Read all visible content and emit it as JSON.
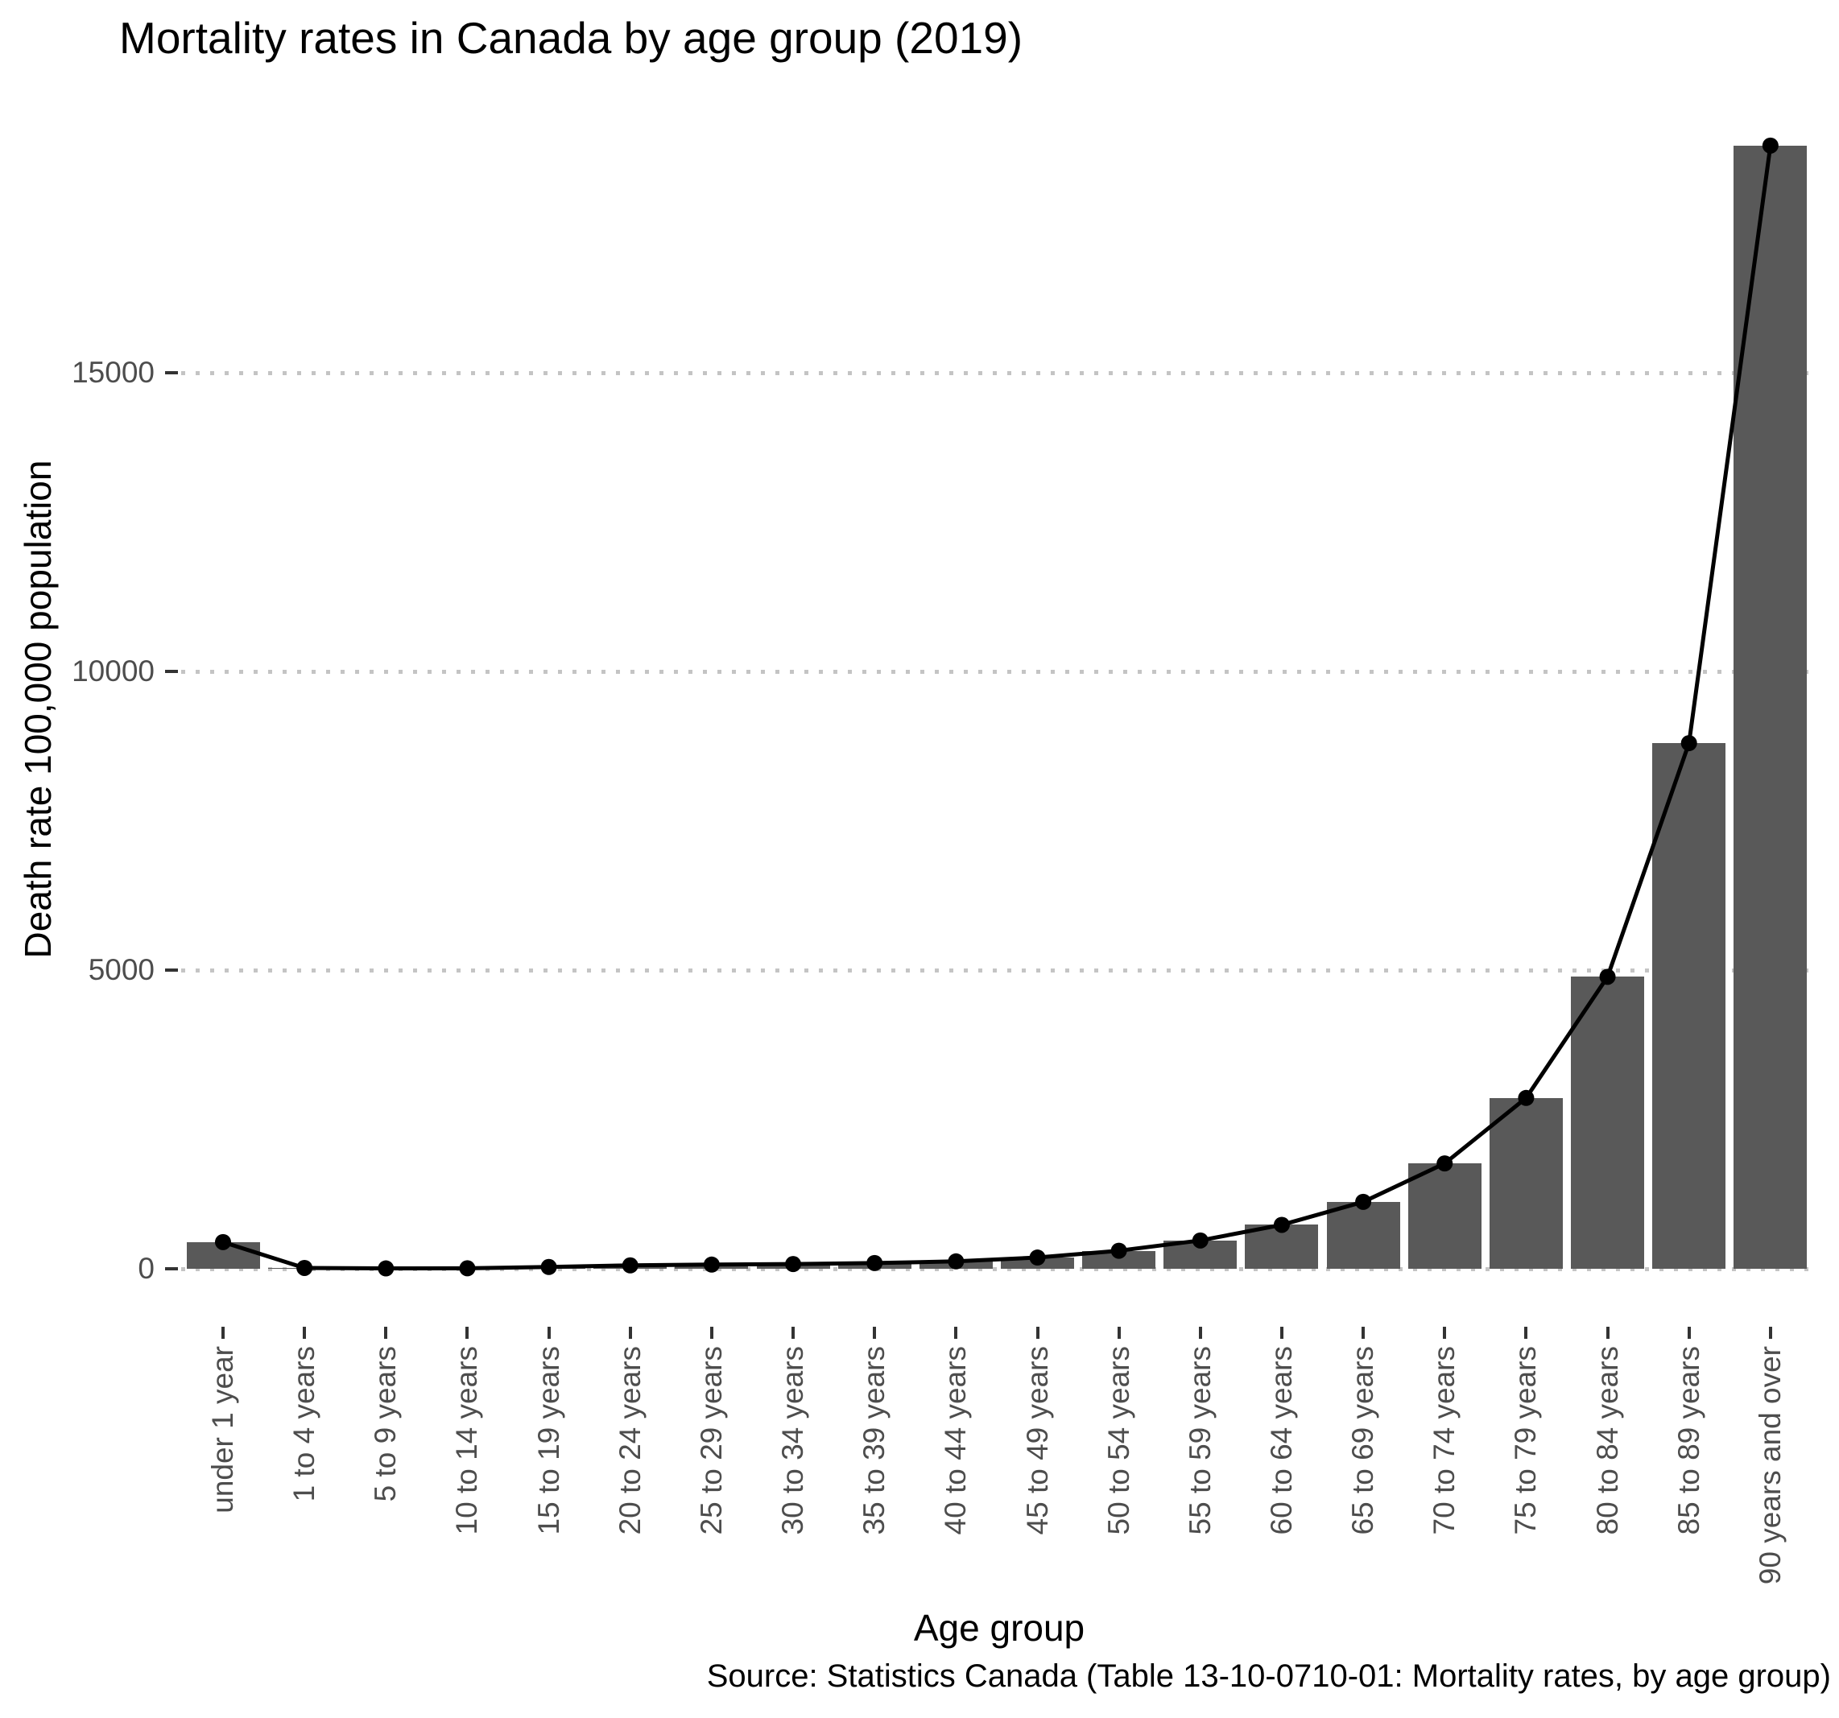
{
  "figure": {
    "caption": "Source: Statistics Canada (Table 13-10-0710-01: Mortality rates, by age group)"
  },
  "chart_data": {
    "type": "bar",
    "overlay": "line-with-points",
    "title": "Mortality rates in Canada by age group (2019)",
    "xlabel": "Age group",
    "ylabel": "Death rate 100,000 population",
    "categories": [
      "under 1 year",
      "1 to 4 years",
      "5 to 9 years",
      "10 to 14 years",
      "15 to 19 years",
      "20 to 24 years",
      "25 to 29 years",
      "30 to 34 years",
      "35 to 39 years",
      "40 to 44 years",
      "45 to 49 years",
      "50 to 54 years",
      "55 to 59 years",
      "60 to 64 years",
      "65 to 69 years",
      "70 to 74 years",
      "75 to 79 years",
      "80 to 84 years",
      "85 to 89 years",
      "90 years and over"
    ],
    "values": [
      450,
      17,
      9,
      11,
      33,
      60,
      73,
      82,
      99,
      127,
      191,
      305,
      477,
      738,
      1123,
      1766,
      2862,
      4889,
      8800,
      18800
    ],
    "yticks": [
      0,
      5000,
      10000,
      15000
    ],
    "ytick_labels": [
      "0",
      "5000",
      "10000",
      "15000"
    ],
    "ylim": [
      -940,
      19660
    ],
    "grid": {
      "axis": "y",
      "style": "dotted",
      "on": true
    },
    "legend": "none",
    "colors": {
      "bar_fill": "#595959",
      "line": "#000000",
      "point": "#000000",
      "grid_dots": "#c4c4c4",
      "axis_text": "#4d4d4d",
      "tick_marks": "#333333",
      "title_text": "#000000",
      "background": "#ffffff"
    }
  }
}
